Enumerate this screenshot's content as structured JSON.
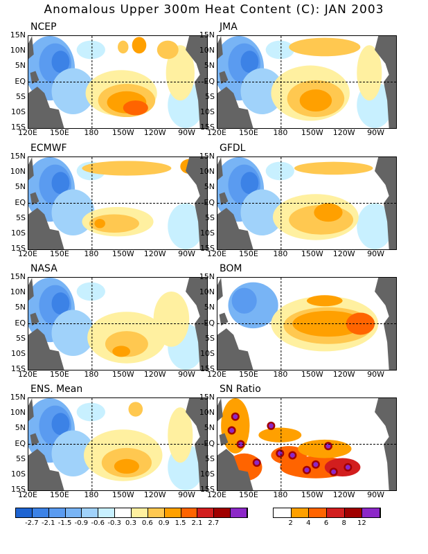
{
  "title": "Anomalous Upper 300m Heat Content (C): JAN 2003",
  "lat_labels": [
    "15N",
    "10N",
    "5N",
    "EQ",
    "5S",
    "10S",
    "15S"
  ],
  "lon_labels": [
    "120E",
    "150E",
    "180",
    "150W",
    "120W",
    "90W"
  ],
  "panels": [
    {
      "id": "ncep",
      "label": "NCEP"
    },
    {
      "id": "jma",
      "label": "JMA"
    },
    {
      "id": "ecmwf",
      "label": "ECMWF"
    },
    {
      "id": "gfdl",
      "label": "GFDL"
    },
    {
      "id": "nasa",
      "label": "NASA"
    },
    {
      "id": "bom",
      "label": "BOM"
    },
    {
      "id": "ens",
      "label": "ENS. Mean"
    },
    {
      "id": "sn",
      "label": "SN Ratio"
    }
  ],
  "colorbar_anomaly": {
    "labels": [
      "-2.7",
      "-2.1",
      "-1.5",
      "-0.9",
      "-0.6",
      "-0.3",
      "0.3",
      "0.6",
      "0.9",
      "1.5",
      "2.1",
      "2.7"
    ],
    "colors": [
      "#1e64d2",
      "#3c82e6",
      "#5a9bf0",
      "#78b4f5",
      "#a0d2fa",
      "#c8f0ff",
      "#ffffff",
      "#fff0a0",
      "#ffc850",
      "#ffa000",
      "#ff6400",
      "#d21e1e",
      "#a00000",
      "#8c28c8"
    ]
  },
  "colorbar_sn": {
    "labels": [
      "2",
      "4",
      "6",
      "8",
      "12"
    ],
    "colors": [
      "#ffffff",
      "#ffa000",
      "#ff6400",
      "#d21e1e",
      "#a00000",
      "#8c28c8"
    ]
  },
  "colors": {
    "land": "#646464",
    "frame": "#000000"
  }
}
